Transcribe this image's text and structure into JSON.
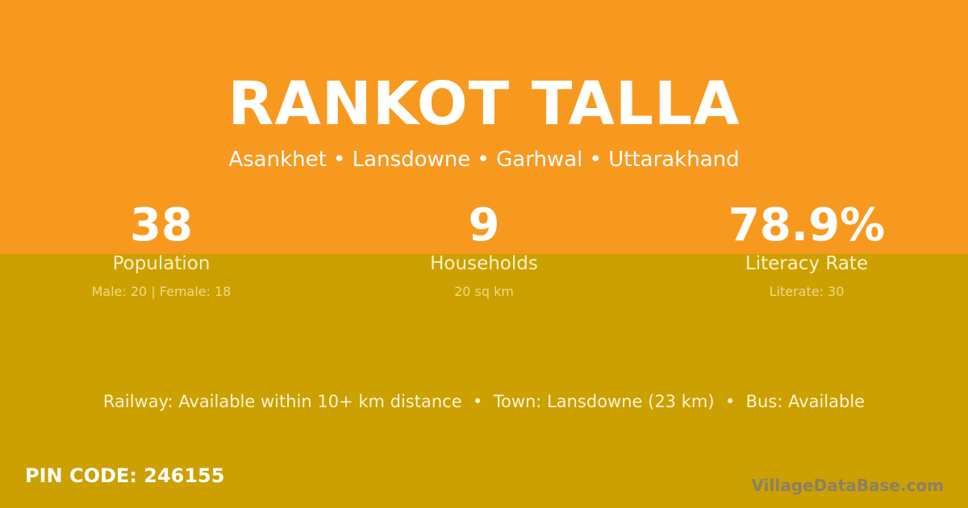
{
  "colors": {
    "top": "#F8991F",
    "bottom": "#CBA000"
  },
  "title": "RANKOT TALLA",
  "subtitle": "Asankhet • Lansdowne • Garhwal • Uttarakhand",
  "stats": [
    {
      "value": "38",
      "label": "Population",
      "detail": "Male: 20 | Female: 18"
    },
    {
      "value": "9",
      "label": "Households",
      "detail": "20 sq km"
    },
    {
      "value": "78.9%",
      "label": "Literacy Rate",
      "detail": "Literate: 30"
    }
  ],
  "info": "Railway: Available within 10+ km distance  •  Town: Lansdowne (23 km)  •  Bus: Available",
  "pin": "PIN CODE: 246155",
  "brand": "VillageDataBase.com"
}
